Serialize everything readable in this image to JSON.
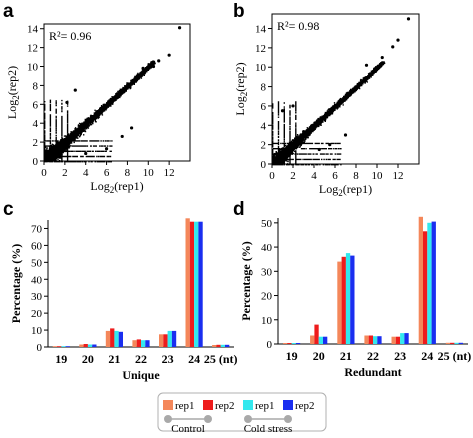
{
  "colors": {
    "control_rep1": "#f4875a",
    "control_rep2": "#ee1c1c",
    "cold_rep1": "#33e8ee",
    "cold_rep2": "#1a2ef0",
    "point": "#000000",
    "group_line": "#a9a9a9"
  },
  "legend": {
    "entries": [
      "rep1",
      "rep2",
      "rep1",
      "rep2"
    ],
    "groups": [
      "Control",
      "Cold stress"
    ]
  },
  "chart_data": [
    {
      "panel": "a",
      "type": "scatter",
      "annotation": "R²= 0.96",
      "xlabel": "Log2(rep1)",
      "ylabel": "Log2(rep2)",
      "x_ticks": [
        0,
        2,
        4,
        6,
        8,
        10,
        12
      ],
      "y_ticks": [
        0,
        2,
        4,
        6,
        8,
        10,
        12,
        14
      ],
      "xlim": [
        0,
        14
      ],
      "ylim": [
        0,
        14.5
      ],
      "points": [
        [
          13.0,
          14.1
        ],
        [
          12.0,
          11.2
        ],
        [
          10.5,
          10.0
        ],
        [
          9.5,
          9.8
        ],
        [
          11.0,
          10.6
        ],
        [
          4.0,
          0.8
        ],
        [
          6.0,
          1.3
        ],
        [
          7.5,
          2.6
        ],
        [
          2.2,
          6.2
        ],
        [
          3.0,
          7.5
        ],
        [
          8.4,
          3.5
        ]
      ]
    },
    {
      "panel": "b",
      "type": "scatter",
      "annotation": "R²= 0.98",
      "xlabel": "Log2(rep1)",
      "ylabel": "Log2(rep2)",
      "x_ticks": [
        0,
        2,
        4,
        6,
        8,
        10,
        12
      ],
      "y_ticks": [
        0,
        2,
        4,
        6,
        8,
        10,
        12,
        14
      ],
      "xlim": [
        0,
        14
      ],
      "ylim": [
        0,
        15.5
      ],
      "points": [
        [
          13.0,
          15.0
        ],
        [
          11.5,
          12.1
        ],
        [
          10.5,
          11.0
        ],
        [
          9.0,
          10.2
        ],
        [
          12.0,
          12.8
        ],
        [
          4.5,
          1.5
        ],
        [
          2.0,
          6.0
        ],
        [
          7.0,
          3.0
        ],
        [
          1.0,
          5.5
        ],
        [
          5.5,
          2.0
        ]
      ]
    },
    {
      "panel": "c",
      "type": "bar",
      "xlabel": "Unique",
      "ylabel": "Percentage (%)",
      "ylim": [
        0,
        75
      ],
      "y_ticks": [
        0,
        10,
        20,
        30,
        40,
        50,
        60,
        70
      ],
      "categories": [
        "19",
        "20",
        "21",
        "22",
        "23",
        "24",
        "25 (nt)"
      ],
      "series": [
        {
          "values": [
            0.5,
            1.5,
            9.5,
            4.0,
            7.5,
            76.0,
            1.2
          ]
        },
        {
          "values": [
            0.5,
            1.8,
            11.0,
            4.5,
            7.5,
            74.0,
            1.3
          ]
        },
        {
          "values": [
            0.5,
            1.5,
            9.5,
            4.0,
            9.5,
            74.0,
            1.3
          ]
        },
        {
          "values": [
            0.5,
            1.5,
            9.0,
            4.0,
            9.5,
            74.0,
            1.3
          ]
        }
      ]
    },
    {
      "panel": "d",
      "type": "bar",
      "xlabel": "Redundant",
      "ylabel": "Percentage (%)",
      "ylim": [
        0,
        52
      ],
      "y_ticks": [
        0,
        10,
        20,
        30,
        40,
        50
      ],
      "categories": [
        "19",
        "20",
        "21",
        "22",
        "23",
        "24",
        "25 (nt)"
      ],
      "series": [
        {
          "values": [
            0.4,
            3.5,
            34.0,
            3.5,
            3.0,
            52.5,
            0.5
          ]
        },
        {
          "values": [
            0.4,
            8.0,
            36.0,
            3.5,
            3.0,
            46.5,
            0.5
          ]
        },
        {
          "values": [
            0.4,
            3.0,
            37.5,
            3.2,
            4.5,
            50.0,
            0.5
          ]
        },
        {
          "values": [
            0.4,
            3.0,
            36.5,
            3.2,
            4.5,
            50.5,
            0.5
          ]
        }
      ]
    }
  ]
}
